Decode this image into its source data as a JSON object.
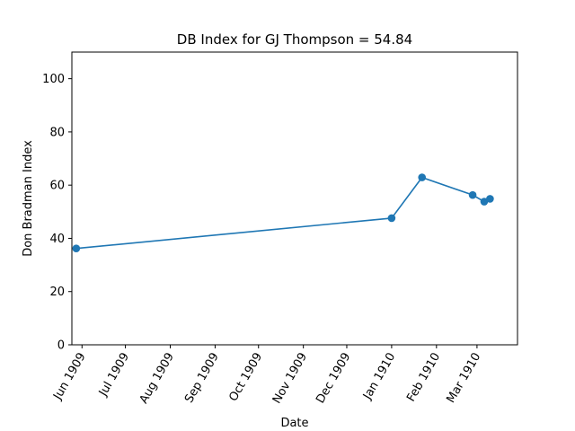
{
  "chart_data": {
    "type": "line",
    "title": "DB Index for GJ Thompson = 54.84",
    "xlabel": "Date",
    "ylabel": "Don Bradman Index",
    "ylim": [
      0,
      110
    ],
    "yticks": [
      0,
      20,
      40,
      60,
      80,
      100
    ],
    "xlim": [
      "1909-05-25",
      "1910-03-29"
    ],
    "xticks": [
      {
        "date": "1909-06-01",
        "label": "Jun 1909"
      },
      {
        "date": "1909-07-01",
        "label": "Jul 1909"
      },
      {
        "date": "1909-08-01",
        "label": "Aug 1909"
      },
      {
        "date": "1909-09-01",
        "label": "Sep 1909"
      },
      {
        "date": "1909-10-01",
        "label": "Oct 1909"
      },
      {
        "date": "1909-11-01",
        "label": "Nov 1909"
      },
      {
        "date": "1909-12-01",
        "label": "Dec 1909"
      },
      {
        "date": "1910-01-01",
        "label": "Jan 1910"
      },
      {
        "date": "1910-02-01",
        "label": "Feb 1910"
      },
      {
        "date": "1910-03-01",
        "label": "Mar 1910"
      }
    ],
    "grid": false,
    "series": [
      {
        "color": "#1f77b4",
        "marker": "circle",
        "points": [
          {
            "x": "1909-05-28",
            "y": 36.2
          },
          {
            "x": "1910-01-01",
            "y": 47.6
          },
          {
            "x": "1910-01-22",
            "y": 62.9
          },
          {
            "x": "1910-02-26",
            "y": 56.3
          },
          {
            "x": "1910-03-06",
            "y": 53.8
          },
          {
            "x": "1910-03-10",
            "y": 54.84
          }
        ]
      }
    ]
  }
}
